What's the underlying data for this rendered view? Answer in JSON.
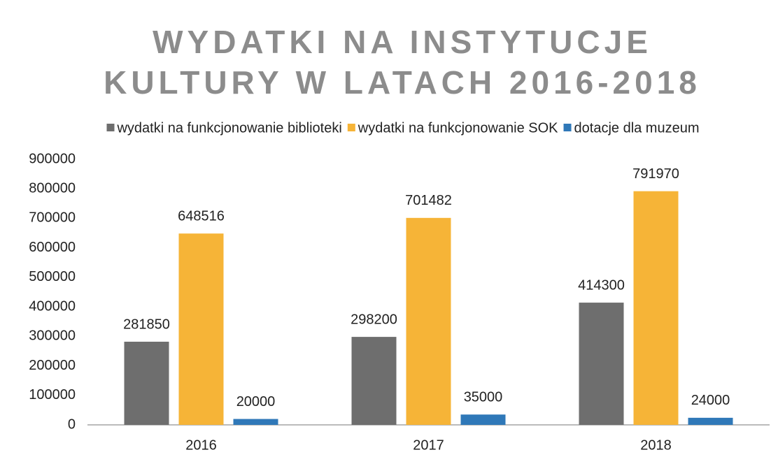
{
  "chart_data": {
    "type": "bar",
    "title": [
      "WYDATKI NA INSTYTUCJE",
      "KULTURY W LATACH 2016-2018"
    ],
    "categories": [
      "2016",
      "2017",
      "2018"
    ],
    "series": [
      {
        "name": "wydatki na funkcjonowanie biblioteki",
        "color": "#6e6e6e",
        "values": [
          281850,
          298200,
          414300
        ]
      },
      {
        "name": "wydatki na funkcjonowanie SOK",
        "color": "#f6b437",
        "values": [
          648516,
          701482,
          791970
        ]
      },
      {
        "name": "dotacje dla muzeum",
        "color": "#2f78b8",
        "values": [
          20000,
          35000,
          24000
        ]
      }
    ],
    "ylim": [
      0,
      900000
    ],
    "yticks": [
      0,
      100000,
      200000,
      300000,
      400000,
      500000,
      600000,
      700000,
      800000,
      900000
    ],
    "legend": "top",
    "grid": false
  }
}
